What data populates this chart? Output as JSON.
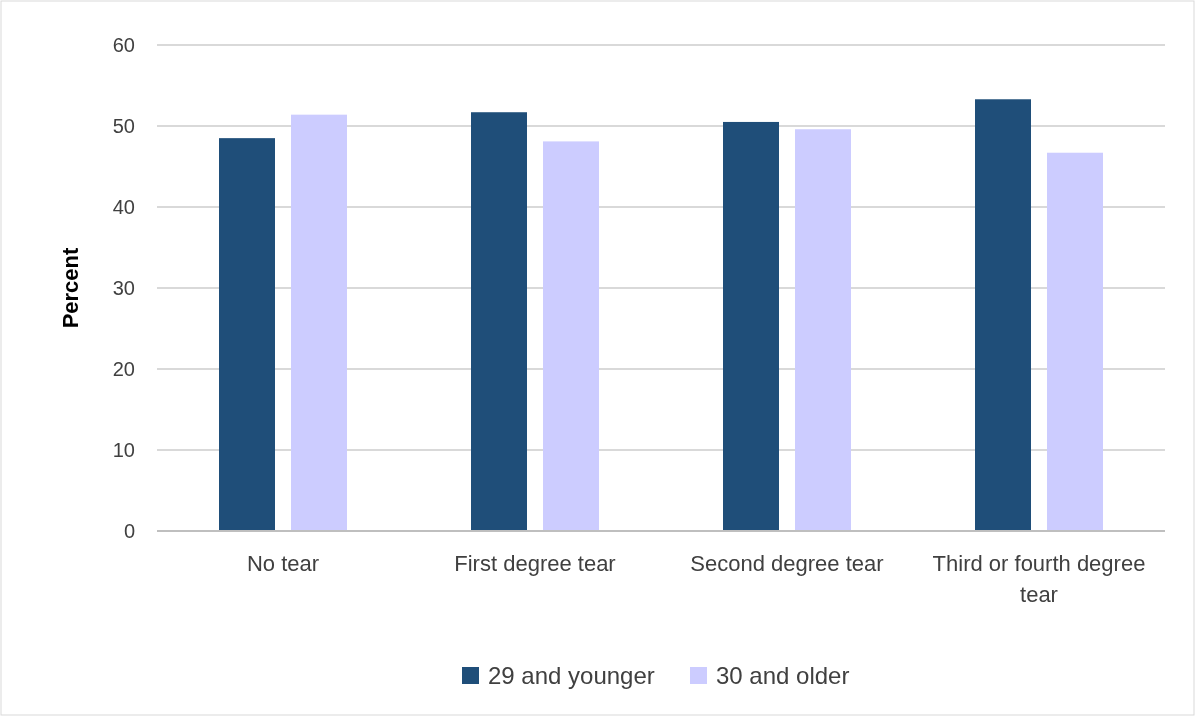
{
  "chart_data": {
    "type": "bar",
    "ylabel": "Percent",
    "categories": [
      "No tear",
      "First degree tear",
      "Second degree tear",
      "Third or fourth degree tear"
    ],
    "series": [
      {
        "name": "29 and younger",
        "color": "#1f4e79",
        "values": [
          48.5,
          51.7,
          50.5,
          53.3
        ]
      },
      {
        "name": "30 and older",
        "color": "#ccccff",
        "values": [
          51.4,
          48.1,
          49.6,
          46.7
        ]
      }
    ],
    "ylim": [
      0,
      60
    ],
    "yticks": [
      0,
      10,
      20,
      30,
      40,
      50,
      60
    ],
    "grid": "y",
    "legend": "bottom"
  }
}
